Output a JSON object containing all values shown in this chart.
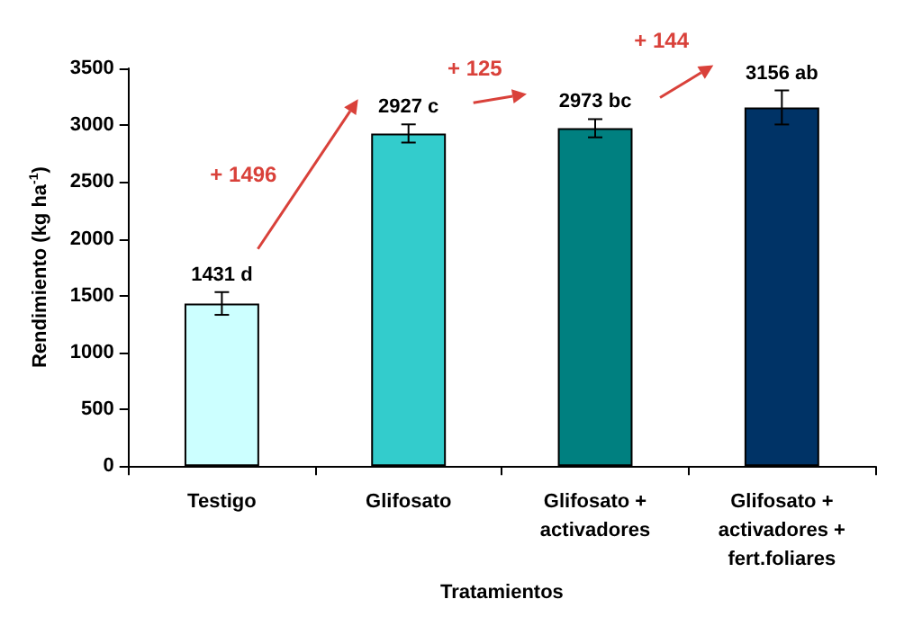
{
  "chart_data": {
    "type": "bar",
    "xlabel": "Tratamientos",
    "ylabel": "Rendimiento (kg ha$^{-1}$)",
    "categories": [
      "Testigo",
      "Glifosato",
      "Glifosato +\nactivadores",
      "Glifosato +\nactivadores +\nfert.foliares"
    ],
    "values": [
      1431,
      2927,
      2973,
      3156
    ],
    "colors": [
      "#ccffff",
      "#33cccc",
      "#008080",
      "#003366"
    ],
    "errors": [
      100,
      80,
      80,
      150
    ],
    "value_labels": [
      "1431 d",
      "2927 c",
      "2973 bc",
      "3156 ab"
    ],
    "annotations": [
      "+ 1496",
      "+ 125",
      "+ 144"
    ],
    "ylim": [
      0,
      3500
    ],
    "yticks": [
      0,
      500,
      1000,
      1500,
      2000,
      2500,
      3000,
      3500
    ],
    "grid": false
  }
}
